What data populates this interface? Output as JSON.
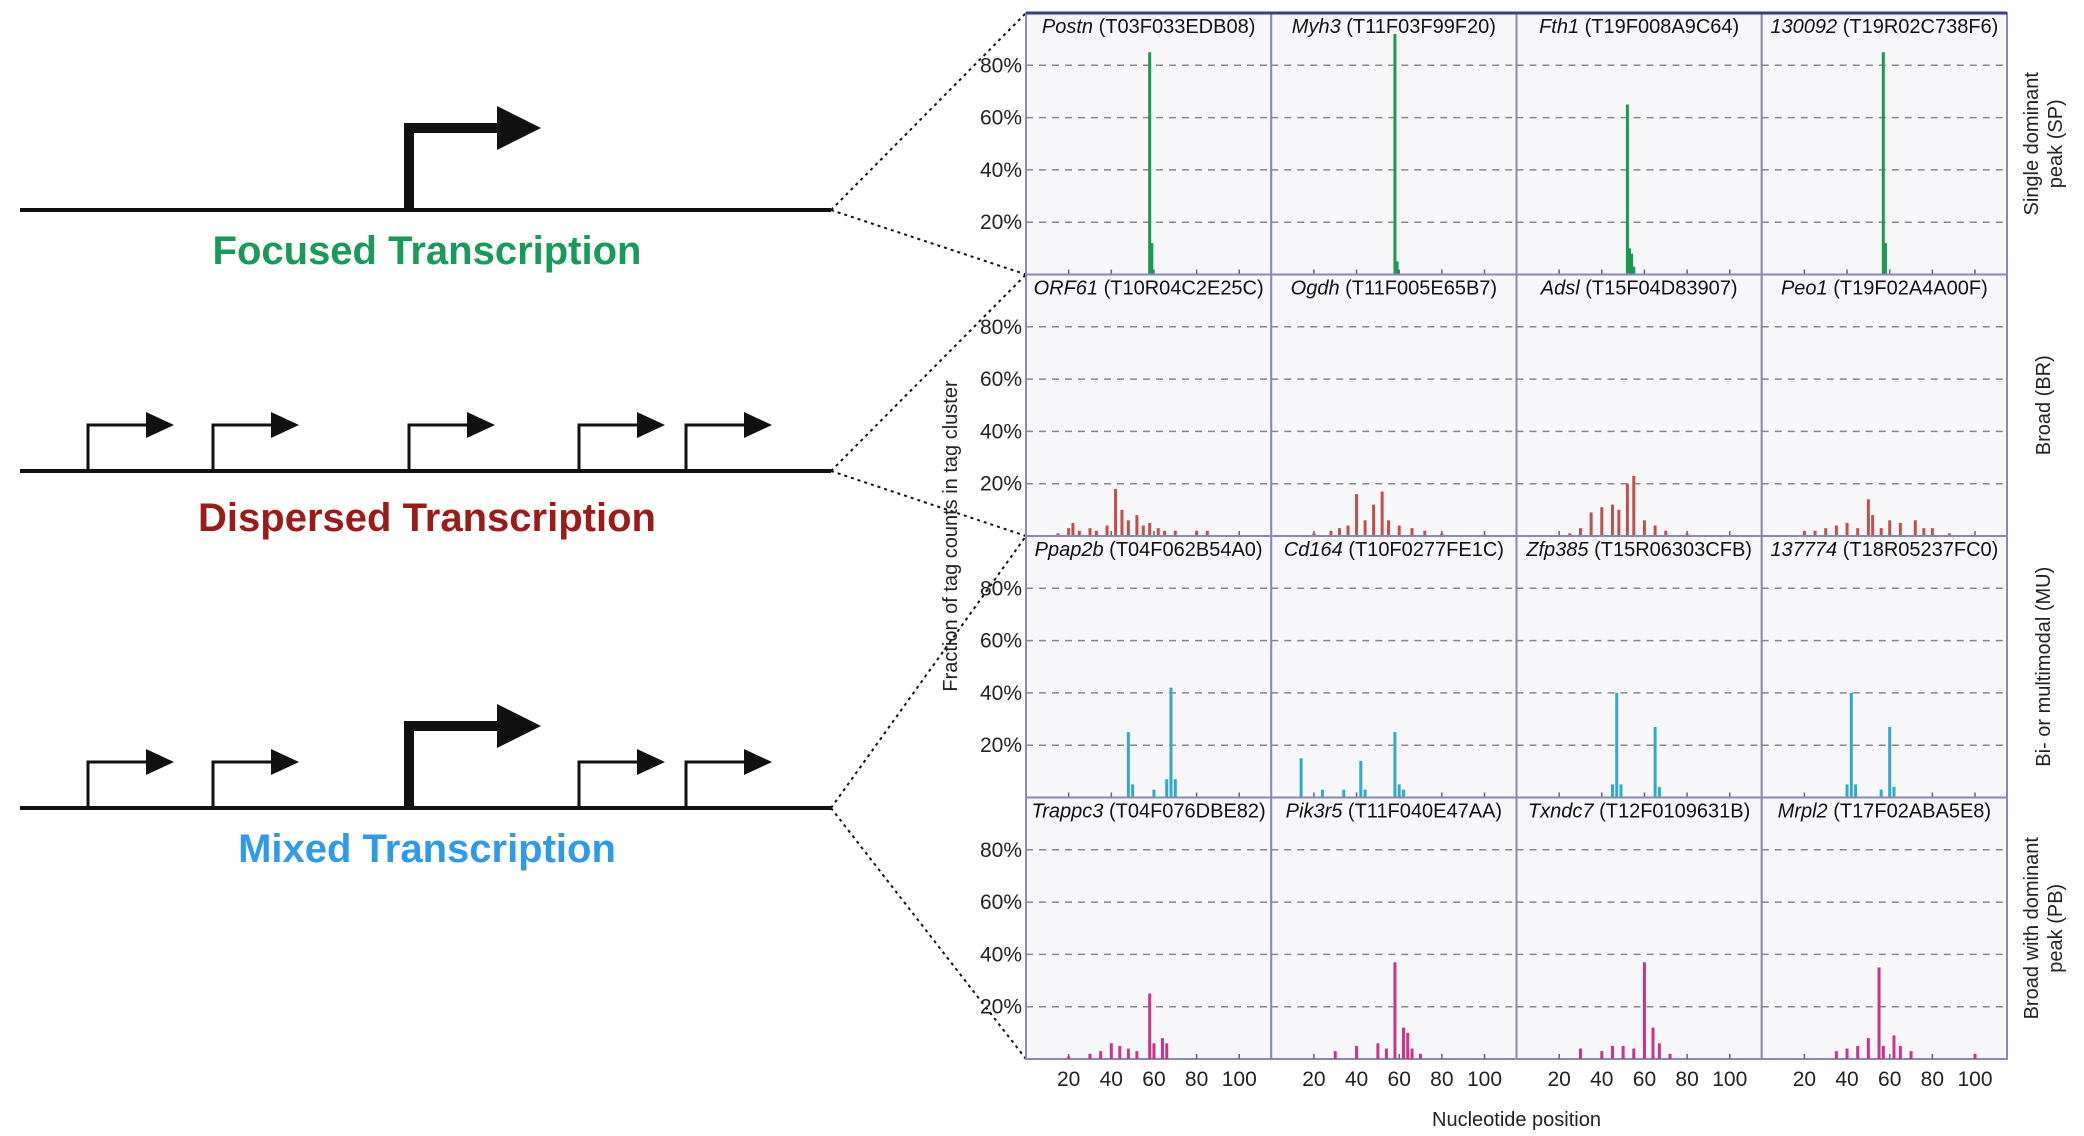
{
  "diagram": {
    "labels": [
      {
        "text": "Focused Transcription",
        "color": "#1a9a5a"
      },
      {
        "text": "Dispersed Transcription",
        "color": "#9b1b1b"
      },
      {
        "text": "Mixed Transcription",
        "color": "#2f9be8"
      }
    ]
  },
  "chart_data": {
    "type": "bar",
    "xlabel": "Nucleotide position",
    "ylabel": "Fraction of tag counts in tag cluster",
    "xlim": [
      0,
      115
    ],
    "xticks": [
      20,
      40,
      60,
      80,
      100
    ],
    "ylim": [
      0,
      100
    ],
    "yticks": [
      {
        "value": 20,
        "label": "20%"
      },
      {
        "value": 40,
        "label": "40%"
      },
      {
        "value": 60,
        "label": "60%"
      },
      {
        "value": 80,
        "label": "80%"
      }
    ],
    "grid": true,
    "rows": [
      {
        "label": [
          "Single dominant",
          "peak (SP)"
        ],
        "color": "#1a9a50",
        "panels": [
          {
            "gene": "Postn",
            "id": "(T03F033EDB08)",
            "x": [
              58,
              59
            ],
            "values": [
              85,
              12
            ]
          },
          {
            "gene": "Myh3",
            "id": "(T11F03F99F20)",
            "x": [
              58,
              59
            ],
            "values": [
              92,
              5
            ]
          },
          {
            "gene": "Fth1",
            "id": "(T19F008A9C64)",
            "x": [
              52,
              53,
              54,
              55
            ],
            "values": [
              65,
              10,
              8,
              3
            ]
          },
          {
            "gene": "130092",
            "id": "(T19R02C738F6)",
            "x": [
              57,
              58
            ],
            "values": [
              85,
              12
            ]
          }
        ]
      },
      {
        "label": [
          "Broad (BR)"
        ],
        "color": "#c0504d",
        "panels": [
          {
            "gene": "ORF61",
            "id": "(T10R04C2E25C)",
            "x": [
              15,
              20,
              22,
              25,
              30,
              33,
              38,
              42,
              45,
              48,
              52,
              55,
              58,
              62,
              65,
              70,
              80,
              85
            ],
            "values": [
              1,
              3,
              5,
              2,
              3,
              2,
              4,
              18,
              10,
              6,
              8,
              4,
              5,
              3,
              2,
              2,
              2,
              2
            ]
          },
          {
            "gene": "Ogdh",
            "id": "(T11F005E65B7)",
            "x": [
              20,
              28,
              32,
              36,
              40,
              44,
              48,
              52,
              55,
              60,
              66,
              72,
              80
            ],
            "values": [
              1,
              2,
              3,
              4,
              16,
              6,
              12,
              17,
              6,
              4,
              3,
              2,
              1
            ]
          },
          {
            "gene": "Adsl",
            "id": "(T15F04D83907)",
            "x": [
              25,
              30,
              35,
              40,
              45,
              48,
              52,
              55,
              60,
              65,
              70,
              80
            ],
            "values": [
              1,
              3,
              9,
              11,
              12,
              10,
              20,
              23,
              6,
              4,
              2,
              1
            ]
          },
          {
            "gene": "Peo1",
            "id": "(T19F02A4A00F)",
            "x": [
              20,
              25,
              30,
              35,
              40,
              45,
              50,
              52,
              56,
              60,
              65,
              72,
              76,
              80,
              88
            ],
            "values": [
              2,
              2,
              3,
              4,
              5,
              3,
              14,
              8,
              3,
              6,
              5,
              6,
              3,
              3,
              1
            ]
          }
        ]
      },
      {
        "label": [
          "Bi- or multimodal (MU)"
        ],
        "color": "#31a9c8",
        "panels": [
          {
            "gene": "Ppap2b",
            "id": "(T04F062B54A0)",
            "x": [
              48,
              50,
              60,
              66,
              68,
              70
            ],
            "values": [
              25,
              5,
              3,
              7,
              42,
              7
            ]
          },
          {
            "gene": "Cd164",
            "id": "(T10F0277FE1C)",
            "x": [
              14,
              24,
              34,
              42,
              44,
              58,
              60,
              62
            ],
            "values": [
              15,
              3,
              3,
              14,
              3,
              25,
              5,
              3
            ]
          },
          {
            "gene": "Zfp385",
            "id": "(T15R06303CFB)",
            "x": [
              45,
              47,
              49,
              65,
              67
            ],
            "values": [
              5,
              40,
              5,
              27,
              4
            ]
          },
          {
            "gene": "137774",
            "id": "(T18R05237FC0)",
            "x": [
              40,
              42,
              44,
              56,
              60,
              62
            ],
            "values": [
              5,
              40,
              5,
              3,
              27,
              4
            ]
          }
        ]
      },
      {
        "label": [
          "Broad with dominant",
          "peak (PB)"
        ],
        "color": "#c8358a",
        "panels": [
          {
            "gene": "Trappc3",
            "id": "(T04F076DBE82)",
            "x": [
              20,
              30,
              35,
              40,
              44,
              48,
              52,
              58,
              60,
              64,
              66
            ],
            "values": [
              1,
              2,
              3,
              6,
              5,
              4,
              3,
              25,
              6,
              8,
              6
            ]
          },
          {
            "gene": "Pik3r5",
            "id": "(T11F040E47AA)",
            "x": [
              30,
              40,
              50,
              54,
              58,
              62,
              64,
              66,
              70
            ],
            "values": [
              3,
              5,
              6,
              4,
              37,
              12,
              10,
              4,
              2
            ]
          },
          {
            "gene": "Txndc7",
            "id": "(T12F0109631B)",
            "x": [
              30,
              40,
              45,
              50,
              55,
              60,
              64,
              67,
              72
            ],
            "values": [
              4,
              3,
              5,
              5,
              4,
              37,
              12,
              6,
              2
            ]
          },
          {
            "gene": "Mrpl2",
            "id": "(T17F02ABA5E8)",
            "x": [
              35,
              40,
              45,
              50,
              55,
              57,
              62,
              65,
              70,
              100
            ],
            "values": [
              3,
              4,
              5,
              8,
              35,
              5,
              9,
              5,
              3,
              2
            ]
          }
        ]
      }
    ]
  }
}
